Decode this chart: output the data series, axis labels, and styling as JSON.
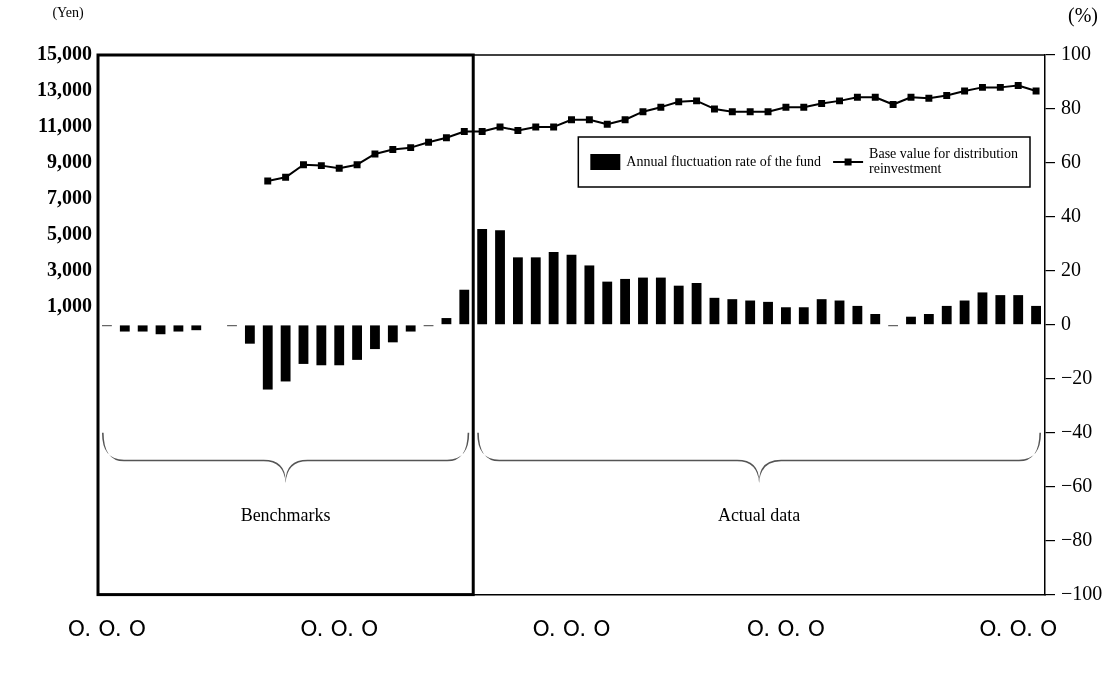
{
  "chart_data": {
    "type": "bar",
    "ylabel": "(Yen)",
    "y2label": "(%)",
    "categories": [
      "O. O. O",
      null,
      null,
      null,
      null,
      null,
      null,
      null,
      null,
      null,
      null,
      null,
      null,
      "O. O. O",
      null,
      null,
      null,
      null,
      null,
      null,
      null,
      null,
      null,
      null,
      null,
      null,
      "O. O. O",
      null,
      null,
      null,
      null,
      null,
      null,
      null,
      null,
      null,
      null,
      null,
      "O. O. O",
      null,
      null,
      null,
      null,
      null,
      null,
      null,
      null,
      null,
      null,
      null,
      null,
      "O. O. O",
      null
    ],
    "series": [
      {
        "name": "Annual fluctuation rate of the fund",
        "axis": "y2",
        "color": "#000000",
        "values": [
          -0.5,
          -2.5,
          -2.5,
          -3.5,
          -2.5,
          -2,
          null,
          -0.5,
          -7,
          -24,
          -21,
          -14.5,
          -15,
          -15,
          -13,
          -9,
          -6.5,
          -2.5,
          -0.5,
          2.5,
          13,
          35.5,
          35,
          25,
          25,
          27,
          26,
          22,
          16,
          17,
          17.5,
          17.5,
          14.5,
          15.5,
          10,
          9.5,
          9,
          8.5,
          6.5,
          6.5,
          9.5,
          9,
          7,
          4,
          -0.5,
          3,
          4,
          7,
          9,
          12,
          11,
          11,
          7
        ]
      },
      {
        "name": "Base value for distribution reinvestment",
        "type": "line",
        "color": "#000000",
        "marker": "square",
        "values": [
          null,
          null,
          null,
          null,
          null,
          null,
          null,
          null,
          null,
          8000,
          8200,
          8900,
          8850,
          8700,
          8900,
          9500,
          9750,
          9850,
          10150,
          10400,
          10750,
          10750,
          11000,
          10800,
          11000,
          11000,
          11400,
          11400,
          11150,
          11400,
          11850,
          12100,
          12400,
          12450,
          12000,
          11850,
          11850,
          11850,
          12100,
          12100,
          12300,
          12450,
          12650,
          12650,
          12250,
          12650,
          12600,
          12750,
          13000,
          13200,
          13200,
          13300,
          13000
        ]
      }
    ],
    "ylim": [
      -15000,
      15000
    ],
    "yticks": [
      {
        "value": 1000,
        "label": "1,000"
      },
      {
        "value": 3000,
        "label": "3,000"
      },
      {
        "value": 5000,
        "label": "5,000"
      },
      {
        "value": 7000,
        "label": "7,000"
      },
      {
        "value": 9000,
        "label": "9,000"
      },
      {
        "value": 11000,
        "label": "11,000"
      },
      {
        "value": 13000,
        "label": "13,000"
      },
      {
        "value": 15000,
        "label": "15,000"
      }
    ],
    "y2lim": [
      -100,
      100
    ],
    "y2ticks": [
      {
        "value": -100,
        "label": "−100"
      },
      {
        "value": -80,
        "label": "−80"
      },
      {
        "value": -60,
        "label": "−60"
      },
      {
        "value": -40,
        "label": "−40"
      },
      {
        "value": -20,
        "label": "−20"
      },
      0,
      20,
      40,
      60,
      80,
      100
    ],
    "legend": "top right",
    "annotations": [
      "Benchmarks",
      "Actual data"
    ]
  }
}
